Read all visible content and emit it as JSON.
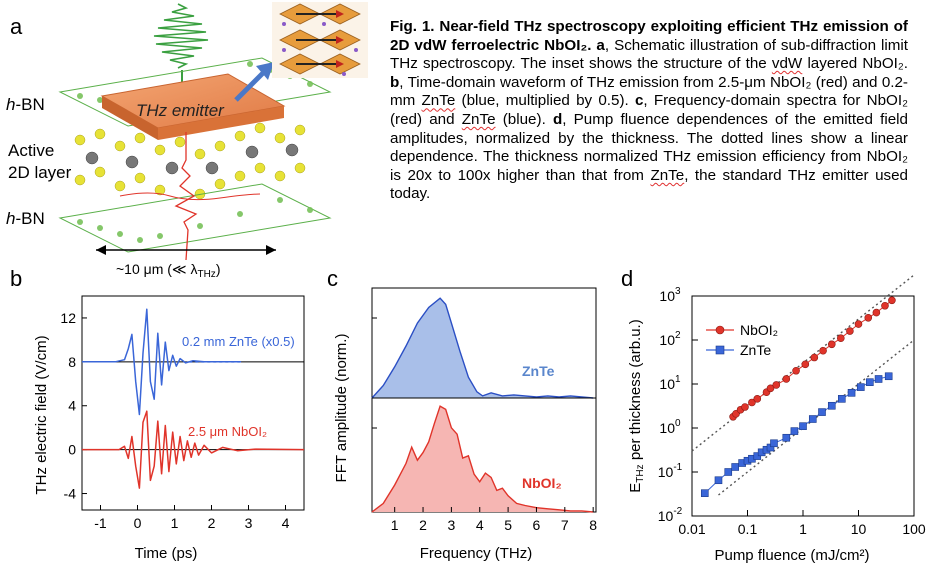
{
  "panel_labels": {
    "a": "a",
    "b": "b",
    "c": "c",
    "d": "d"
  },
  "caption": {
    "title": "Fig. 1. Near-field THz spectroscopy exploiting efficient THz emission of 2D vdW ferroelectric NbOI₂.",
    "a_label": "a",
    "a_text": ", Schematic illustration of sub-diffraction limit THz spectroscopy. The inset shows the structure of the",
    "a_vdw": "vdW",
    "a_text2": "layered NbOI₂.",
    "b_label": "b",
    "b_text": ", Time-domain waveform of THz emission from 2.5-μm NbOI₂ (red) and 0.2-mm",
    "b_znte": "ZnTe",
    "b_text2": "(blue, multiplied by 0.5).",
    "c_label": "c",
    "c_text": ", Frequency-domain spectra for NbOI₂ (red) and",
    "c_znte": "ZnTe",
    "c_text2": "(blue).",
    "d_label": "d",
    "d_text": ", Pump fluence dependences of the emitted field amplitudes, normalized by the thickness. The dotted lines show a linear dependence. The thickness normalized THz emission efficiency from NbOI₂ is 20x to 100x higher than that from",
    "d_znte": "ZnTe",
    "d_text2": ", the standard THz emitter used today."
  },
  "schematic": {
    "hbn_top": "h-BN",
    "active_line1": "Active",
    "active_line2": "2D layer",
    "hbn_bottom": "h-BN",
    "emitter": "THz emitter",
    "scale": "~10 μm (≪ λTHz)"
  },
  "chart_data": [
    {
      "panel": "b",
      "type": "line",
      "xlabel": "Time (ps)",
      "ylabel": "THz electric field (V/cm)",
      "xlim": [
        -1.5,
        4.5
      ],
      "ylim": [
        -5.5,
        14
      ],
      "xticks": [
        -1,
        0,
        1,
        2,
        3,
        4
      ],
      "yticks": [
        -4,
        0,
        4,
        8,
        12
      ],
      "series": [
        {
          "name": "0.2 mm ZnTe (x0.5)",
          "color": "#3a66d8",
          "offset": 8,
          "t": [
            -1.5,
            -0.6,
            -0.35,
            -0.25,
            -0.15,
            -0.05,
            0.05,
            0.15,
            0.25,
            0.35,
            0.45,
            0.55,
            0.65,
            0.75,
            0.85,
            0.95,
            1.05,
            1.15,
            1.3,
            1.5,
            1.8,
            2.2,
            2.8
          ],
          "v": [
            8,
            8,
            8.2,
            9.2,
            10.5,
            6.2,
            3.2,
            8.8,
            12.8,
            6.2,
            4.6,
            10.6,
            5.9,
            9.8,
            7.2,
            8.6,
            7.6,
            8.3,
            7.9,
            8.1,
            8.0,
            8.0,
            8.0
          ]
        },
        {
          "name": "2.5 μm NbOI₂",
          "color": "#e0342a",
          "offset": 0,
          "t": [
            -1.5,
            -0.5,
            -0.35,
            -0.25,
            -0.15,
            -0.05,
            0.05,
            0.15,
            0.25,
            0.35,
            0.45,
            0.55,
            0.65,
            0.75,
            0.85,
            0.95,
            1.05,
            1.15,
            1.25,
            1.35,
            1.45,
            1.55,
            1.65,
            1.8,
            2.0,
            2.3,
            2.7,
            3.2,
            4.5
          ],
          "v": [
            0,
            0,
            0.3,
            -0.8,
            1.2,
            -1.5,
            -3.5,
            2.5,
            3.5,
            -2.8,
            -1.5,
            2.6,
            -2.2,
            2.2,
            -2.0,
            1.6,
            -1.3,
            1.2,
            -1.0,
            0.8,
            -0.7,
            0.6,
            -0.5,
            0.4,
            -0.3,
            0.2,
            -0.1,
            0.05,
            0
          ]
        }
      ]
    },
    {
      "panel": "c",
      "type": "area",
      "xlabel": "Frequency (THz)",
      "ylabel": "FFT amplitude (norm.)",
      "xlim": [
        0.2,
        8.1
      ],
      "xticks": [
        1,
        2,
        3,
        4,
        5,
        6,
        7,
        8
      ],
      "series": [
        {
          "name": "ZnTe",
          "color": "#2b4fc4",
          "fill": "#a9bfe9",
          "x": [
            0.2,
            0.6,
            1.0,
            1.4,
            1.8,
            2.2,
            2.6,
            2.8,
            3.0,
            3.3,
            3.6,
            3.9,
            4.1,
            4.4,
            4.8,
            5.2,
            5.6,
            6.0,
            6.4,
            6.8,
            7.2,
            7.6,
            8.0
          ],
          "y": [
            0.0,
            0.12,
            0.3,
            0.5,
            0.72,
            0.87,
            0.96,
            0.9,
            0.72,
            0.45,
            0.2,
            0.06,
            0.02,
            0.05,
            0.02,
            0.03,
            0.02,
            0.01,
            0.02,
            0.01,
            0.02,
            0.01,
            0.0
          ]
        },
        {
          "name": "NbOI₂",
          "color": "#e0342a",
          "fill": "#f6b6b3",
          "x": [
            0.2,
            0.6,
            1.0,
            1.4,
            1.6,
            1.8,
            2.0,
            2.2,
            2.4,
            2.6,
            2.8,
            3.0,
            3.2,
            3.4,
            3.6,
            3.8,
            4.0,
            4.2,
            4.4,
            4.6,
            4.8,
            5.0,
            5.3,
            5.6,
            6.0,
            6.4,
            6.8,
            7.2,
            7.6,
            8.0
          ],
          "y": [
            0.0,
            0.08,
            0.25,
            0.45,
            0.6,
            0.48,
            0.55,
            0.65,
            0.82,
            0.98,
            0.95,
            0.78,
            0.72,
            0.5,
            0.52,
            0.35,
            0.28,
            0.36,
            0.32,
            0.2,
            0.22,
            0.15,
            0.08,
            0.06,
            0.04,
            0.03,
            0.02,
            0.01,
            0.01,
            0.0
          ]
        }
      ]
    },
    {
      "panel": "d",
      "type": "scatter",
      "xlabel": "Pump fluence (mJ/cm²)",
      "ylabel": "E_THz per thickness (arb.u.)",
      "xscale": "log",
      "yscale": "log",
      "xlim": [
        0.01,
        100
      ],
      "ylim": [
        0.01,
        1000
      ],
      "xtick_labels": [
        "0.01",
        "0.1",
        "1",
        "10",
        "100"
      ],
      "ytick_labels": [
        "10^-2",
        "10^-1",
        "10^0",
        "10^1",
        "10^2",
        "10^3"
      ],
      "legend": "top-left",
      "series": [
        {
          "name": "NbOI₂",
          "color": "#e0342a",
          "marker": "circle",
          "x": [
            0.055,
            0.062,
            0.075,
            0.09,
            0.12,
            0.15,
            0.22,
            0.26,
            0.33,
            0.5,
            0.75,
            1.1,
            1.6,
            2.3,
            3.3,
            4.8,
            7,
            10,
            15,
            21,
            30,
            40
          ],
          "y": [
            1.8,
            2.1,
            2.6,
            3.0,
            3.8,
            4.6,
            6.5,
            8.0,
            9.5,
            13,
            20,
            28,
            40,
            57,
            80,
            110,
            160,
            230,
            320,
            420,
            600,
            800
          ]
        },
        {
          "name": "ZnTe",
          "color": "#3a66d8",
          "marker": "square",
          "x": [
            0.017,
            0.03,
            0.045,
            0.06,
            0.08,
            0.1,
            0.12,
            0.15,
            0.18,
            0.22,
            0.26,
            0.3,
            0.5,
            0.7,
            1.0,
            1.5,
            2.2,
            3.3,
            5,
            7.5,
            11,
            16,
            23,
            35
          ],
          "y": [
            0.033,
            0.065,
            0.1,
            0.13,
            0.16,
            0.18,
            0.2,
            0.23,
            0.28,
            0.32,
            0.36,
            0.45,
            0.6,
            0.85,
            1.1,
            1.6,
            2.3,
            3.2,
            4.6,
            6.3,
            8.5,
            11,
            13,
            15
          ]
        }
      ],
      "dotted_lines": "linear dependence"
    }
  ]
}
